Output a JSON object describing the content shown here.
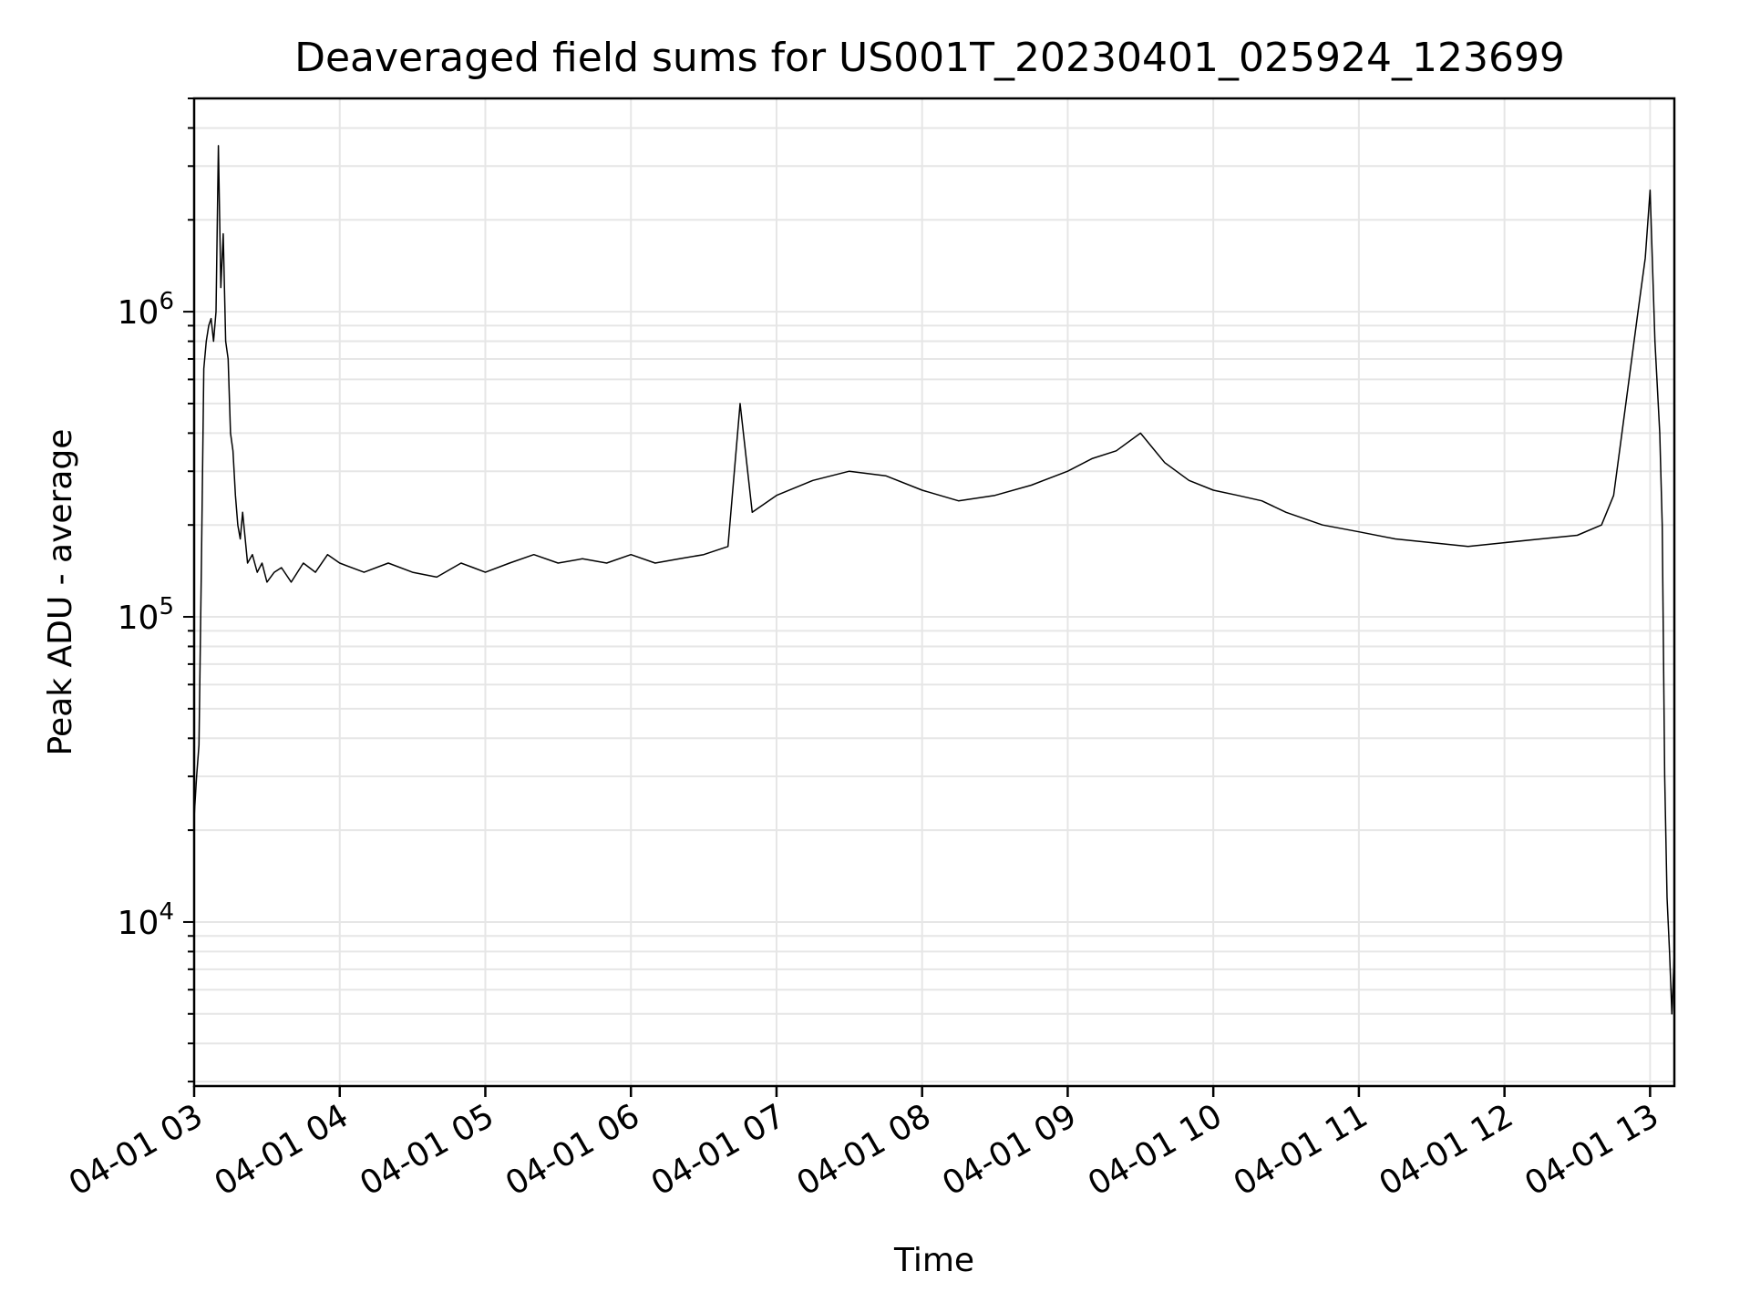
{
  "chart_data": {
    "type": "line",
    "title": "Deaveraged field sums for US001T_20230401_025924_123699",
    "xlabel": "Time",
    "ylabel": "Peak ADU - average",
    "y_scale": "log",
    "ylim": [
      2900,
      5000000
    ],
    "xlim": [
      "2023-04-01 03:00",
      "2023-04-01 13:10"
    ],
    "grid": true,
    "line_color": "#000000",
    "grid_color": "#e6e6e6",
    "x_ticks": [
      {
        "label": "04-01 03",
        "value": "2023-04-01 03:00"
      },
      {
        "label": "04-01 04",
        "value": "2023-04-01 04:00"
      },
      {
        "label": "04-01 05",
        "value": "2023-04-01 05:00"
      },
      {
        "label": "04-01 06",
        "value": "2023-04-01 06:00"
      },
      {
        "label": "04-01 07",
        "value": "2023-04-01 07:00"
      },
      {
        "label": "04-01 08",
        "value": "2023-04-01 08:00"
      },
      {
        "label": "04-01 09",
        "value": "2023-04-01 09:00"
      },
      {
        "label": "04-01 10",
        "value": "2023-04-01 10:00"
      },
      {
        "label": "04-01 11",
        "value": "2023-04-01 11:00"
      },
      {
        "label": "04-01 12",
        "value": "2023-04-01 12:00"
      },
      {
        "label": "04-01 13",
        "value": "2023-04-01 13:00"
      }
    ],
    "y_ticks": [
      {
        "base": "10",
        "exp": "4",
        "value": 10000
      },
      {
        "base": "10",
        "exp": "5",
        "value": 100000
      },
      {
        "base": "10",
        "exp": "6",
        "value": 1000000
      }
    ],
    "series": [
      {
        "x": [
          "2023-04-01 03:00",
          "2023-04-01 03:01",
          "2023-04-01 03:02",
          "2023-04-01 03:03",
          "2023-04-01 03:04",
          "2023-04-01 03:05",
          "2023-04-01 03:06",
          "2023-04-01 03:07",
          "2023-04-01 03:08",
          "2023-04-01 03:09",
          "2023-04-01 03:10",
          "2023-04-01 03:11",
          "2023-04-01 03:12",
          "2023-04-01 03:13",
          "2023-04-01 03:14",
          "2023-04-01 03:15",
          "2023-04-01 03:16",
          "2023-04-01 03:17",
          "2023-04-01 03:18",
          "2023-04-01 03:19",
          "2023-04-01 03:20",
          "2023-04-01 03:22",
          "2023-04-01 03:24",
          "2023-04-01 03:26",
          "2023-04-01 03:28",
          "2023-04-01 03:30",
          "2023-04-01 03:33",
          "2023-04-01 03:36",
          "2023-04-01 03:40",
          "2023-04-01 03:45",
          "2023-04-01 03:50",
          "2023-04-01 03:55",
          "2023-04-01 04:00",
          "2023-04-01 04:10",
          "2023-04-01 04:20",
          "2023-04-01 04:30",
          "2023-04-01 04:40",
          "2023-04-01 04:50",
          "2023-04-01 04:55",
          "2023-04-01 05:00",
          "2023-04-01 05:10",
          "2023-04-01 05:20",
          "2023-04-01 05:30",
          "2023-04-01 05:40",
          "2023-04-01 05:50",
          "2023-04-01 06:00",
          "2023-04-01 06:10",
          "2023-04-01 06:20",
          "2023-04-01 06:30",
          "2023-04-01 06:40",
          "2023-04-01 06:45",
          "2023-04-01 06:50",
          "2023-04-01 07:00",
          "2023-04-01 07:15",
          "2023-04-01 07:30",
          "2023-04-01 07:45",
          "2023-04-01 08:00",
          "2023-04-01 08:15",
          "2023-04-01 08:30",
          "2023-04-01 08:45",
          "2023-04-01 09:00",
          "2023-04-01 09:10",
          "2023-04-01 09:20",
          "2023-04-01 09:30",
          "2023-04-01 09:40",
          "2023-04-01 09:50",
          "2023-04-01 10:00",
          "2023-04-01 10:10",
          "2023-04-01 10:20",
          "2023-04-01 10:30",
          "2023-04-01 10:45",
          "2023-04-01 11:00",
          "2023-04-01 11:15",
          "2023-04-01 11:30",
          "2023-04-01 11:45",
          "2023-04-01 12:00",
          "2023-04-01 12:15",
          "2023-04-01 12:30",
          "2023-04-01 12:40",
          "2023-04-01 12:45",
          "2023-04-01 12:50",
          "2023-04-01 12:55",
          "2023-04-01 12:58",
          "2023-04-01 13:00",
          "2023-04-01 13:02",
          "2023-04-01 13:04",
          "2023-04-01 13:05",
          "2023-04-01 13:06",
          "2023-04-01 13:07",
          "2023-04-01 13:08",
          "2023-04-01 13:09",
          "2023-04-01 13:10"
        ],
        "y": [
          22000,
          30000,
          38000,
          150000,
          650000,
          800000,
          900000,
          950000,
          800000,
          1000000,
          3500000,
          1200000,
          1800000,
          800000,
          700000,
          400000,
          350000,
          250000,
          200000,
          180000,
          220000,
          150000,
          160000,
          140000,
          150000,
          130000,
          140000,
          145000,
          130000,
          150000,
          140000,
          160000,
          150000,
          140000,
          150000,
          140000,
          135000,
          150000,
          145000,
          140000,
          150000,
          160000,
          150000,
          155000,
          150000,
          160000,
          150000,
          155000,
          160000,
          170000,
          500000,
          220000,
          250000,
          280000,
          300000,
          290000,
          260000,
          240000,
          250000,
          270000,
          300000,
          330000,
          350000,
          400000,
          320000,
          280000,
          260000,
          250000,
          240000,
          220000,
          200000,
          190000,
          180000,
          175000,
          170000,
          175000,
          180000,
          185000,
          200000,
          250000,
          500000,
          1000000,
          1500000,
          2500000,
          800000,
          400000,
          200000,
          30000,
          12000,
          8000,
          5000,
          8000
        ]
      }
    ]
  }
}
